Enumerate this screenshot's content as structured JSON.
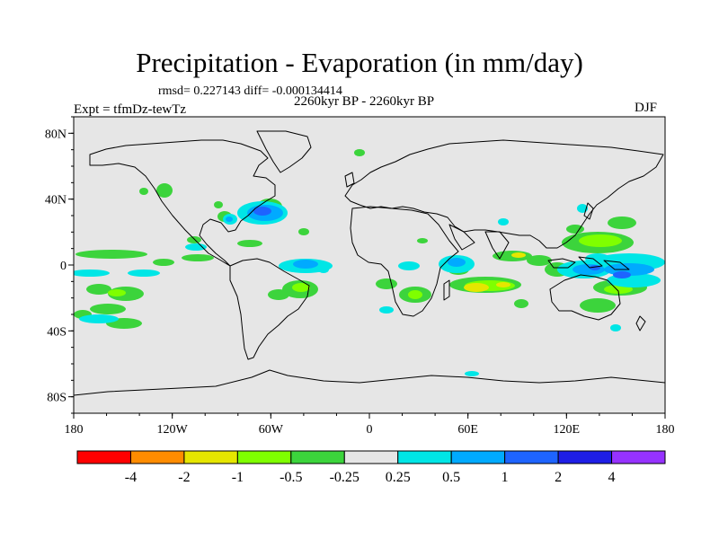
{
  "title": "Precipitation - Evaporation (in mm/day)",
  "stats_line": "rmsd= 0.227143 diff= -0.000134414",
  "period": "2260kyr BP - 2260kyr BP",
  "experiment": "Expt = tfmDz-tewTz",
  "season": "DJF",
  "axes": {
    "x_ticks": [
      "180",
      "120W",
      "60W",
      "0",
      "60E",
      "120E",
      "180"
    ],
    "y_ticks": [
      "80N",
      "40N",
      "0",
      "40S",
      "80S"
    ]
  },
  "colorbar": {
    "labels": [
      "-4",
      "-2",
      "-1",
      "-0.5",
      "-0.25",
      "0.25",
      "0.5",
      "1",
      "2",
      "4"
    ],
    "colors": [
      "#ff0000",
      "#ff8c00",
      "#e6e600",
      "#7fff00",
      "#3cd43c",
      "#e6e6e6",
      "#00e6e6",
      "#00aaff",
      "#1e64ff",
      "#1e1ee6",
      "#9632ff"
    ]
  }
}
